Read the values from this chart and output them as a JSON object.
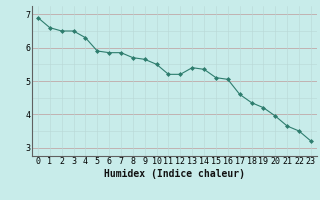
{
  "x": [
    0,
    1,
    2,
    3,
    4,
    5,
    6,
    7,
    8,
    9,
    10,
    11,
    12,
    13,
    14,
    15,
    16,
    17,
    18,
    19,
    20,
    21,
    22,
    23
  ],
  "y": [
    6.9,
    6.6,
    6.5,
    6.5,
    6.3,
    5.9,
    5.85,
    5.85,
    5.7,
    5.65,
    5.5,
    5.2,
    5.2,
    5.4,
    5.35,
    5.1,
    5.05,
    4.6,
    4.35,
    4.2,
    3.95,
    3.65,
    3.5,
    3.2
  ],
  "line_color": "#2e7d6e",
  "marker": "D",
  "marker_size": 2.0,
  "bg_color": "#c8ecea",
  "grid_color_h_major": "#c0a8a8",
  "grid_color_v": "#b8d8d6",
  "xlabel": "Humidex (Indice chaleur)",
  "xlabel_fontsize": 7,
  "tick_fontsize": 6,
  "yticks": [
    3,
    4,
    5,
    6,
    7
  ],
  "xticks": [
    0,
    1,
    2,
    3,
    4,
    5,
    6,
    7,
    8,
    9,
    10,
    11,
    12,
    13,
    14,
    15,
    16,
    17,
    18,
    19,
    20,
    21,
    22,
    23
  ],
  "ylim": [
    2.75,
    7.25
  ],
  "xlim": [
    -0.5,
    23.5
  ]
}
